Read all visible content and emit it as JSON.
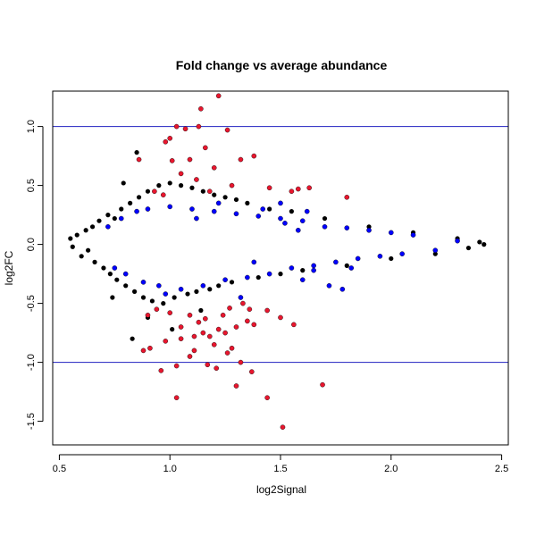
{
  "chart_data": {
    "type": "scatter",
    "title": "Fold change vs average abundance",
    "xlabel": "log2Signal",
    "ylabel": "log2FC",
    "xlim": [
      0.47,
      2.53
    ],
    "ylim": [
      -1.7,
      1.3
    ],
    "x_ticks": [
      0.5,
      1.0,
      1.5,
      2.0,
      2.5
    ],
    "x_tick_labels": [
      "0.5",
      "1.0",
      "1.5",
      "2.0",
      "2.5"
    ],
    "y_ticks": [
      -1.5,
      -1.0,
      -0.5,
      0.0,
      0.5,
      1.0
    ],
    "y_tick_labels": [
      "-1.5",
      "-1.0",
      "-0.5",
      "0.0",
      "0.5",
      "1.0"
    ],
    "hlines": [
      {
        "y": 1.0,
        "color": "#2020c0"
      },
      {
        "y": -1.0,
        "color": "#2020c0"
      }
    ],
    "grid": false,
    "legend": "none",
    "series": [
      {
        "color": "#000000",
        "points": [
          [
            0.55,
            0.05
          ],
          [
            0.56,
            -0.02
          ],
          [
            0.58,
            0.08
          ],
          [
            0.6,
            -0.1
          ],
          [
            0.62,
            0.12
          ],
          [
            0.63,
            -0.05
          ],
          [
            0.65,
            0.15
          ],
          [
            0.66,
            -0.15
          ],
          [
            0.68,
            0.2
          ],
          [
            0.7,
            -0.2
          ],
          [
            0.72,
            0.25
          ],
          [
            0.73,
            -0.25
          ],
          [
            0.75,
            0.22
          ],
          [
            0.76,
            -0.3
          ],
          [
            0.78,
            0.3
          ],
          [
            0.8,
            -0.35
          ],
          [
            0.82,
            0.35
          ],
          [
            0.84,
            -0.4
          ],
          [
            0.85,
            0.78
          ],
          [
            0.86,
            0.4
          ],
          [
            0.88,
            -0.45
          ],
          [
            0.9,
            0.45
          ],
          [
            0.92,
            -0.48
          ],
          [
            0.95,
            0.5
          ],
          [
            0.97,
            -0.5
          ],
          [
            1.0,
            0.52
          ],
          [
            1.02,
            -0.45
          ],
          [
            1.05,
            0.5
          ],
          [
            1.08,
            -0.42
          ],
          [
            1.1,
            0.48
          ],
          [
            1.12,
            -0.4
          ],
          [
            1.15,
            0.45
          ],
          [
            1.18,
            -0.38
          ],
          [
            1.2,
            0.42
          ],
          [
            1.22,
            -0.35
          ],
          [
            1.25,
            0.4
          ],
          [
            1.28,
            -0.32
          ],
          [
            1.3,
            0.38
          ],
          [
            1.35,
            0.35
          ],
          [
            1.4,
            -0.28
          ],
          [
            1.45,
            0.3
          ],
          [
            1.5,
            -0.25
          ],
          [
            1.55,
            0.28
          ],
          [
            1.6,
            -0.22
          ],
          [
            1.7,
            0.22
          ],
          [
            1.8,
            -0.18
          ],
          [
            1.9,
            0.15
          ],
          [
            2.0,
            -0.12
          ],
          [
            2.1,
            0.1
          ],
          [
            2.2,
            -0.08
          ],
          [
            2.3,
            0.05
          ],
          [
            2.35,
            -0.03
          ],
          [
            2.4,
            0.02
          ],
          [
            2.42,
            0.0
          ],
          [
            0.83,
            -0.8
          ],
          [
            0.9,
            -0.62
          ],
          [
            1.01,
            -0.72
          ],
          [
            0.79,
            0.52
          ],
          [
            0.74,
            -0.45
          ],
          [
            1.14,
            -0.56
          ]
        ]
      },
      {
        "color": "#0000ff",
        "points": [
          [
            0.72,
            0.15
          ],
          [
            0.75,
            -0.2
          ],
          [
            0.78,
            0.22
          ],
          [
            0.8,
            -0.25
          ],
          [
            0.85,
            0.28
          ],
          [
            0.88,
            -0.32
          ],
          [
            0.9,
            0.3
          ],
          [
            0.95,
            -0.35
          ],
          [
            1.0,
            0.32
          ],
          [
            1.05,
            -0.38
          ],
          [
            1.1,
            0.3
          ],
          [
            1.15,
            -0.35
          ],
          [
            1.2,
            0.28
          ],
          [
            1.25,
            -0.3
          ],
          [
            1.3,
            0.26
          ],
          [
            1.35,
            -0.28
          ],
          [
            1.4,
            0.24
          ],
          [
            1.45,
            -0.25
          ],
          [
            1.5,
            0.22
          ],
          [
            1.55,
            -0.2
          ],
          [
            1.6,
            0.2
          ],
          [
            1.65,
            -0.18
          ],
          [
            1.7,
            0.15
          ],
          [
            1.75,
            -0.15
          ],
          [
            1.8,
            0.14
          ],
          [
            1.85,
            -0.12
          ],
          [
            1.9,
            0.12
          ],
          [
            1.95,
            -0.1
          ],
          [
            2.0,
            0.1
          ],
          [
            2.05,
            -0.08
          ],
          [
            2.1,
            0.08
          ],
          [
            2.2,
            -0.05
          ],
          [
            2.3,
            0.03
          ],
          [
            1.6,
            -0.3
          ],
          [
            1.72,
            -0.35
          ],
          [
            1.78,
            -0.38
          ],
          [
            1.5,
            0.35
          ],
          [
            1.42,
            0.3
          ],
          [
            1.62,
            0.28
          ],
          [
            1.82,
            -0.2
          ],
          [
            1.12,
            0.22
          ],
          [
            0.98,
            -0.42
          ],
          [
            1.22,
            0.35
          ],
          [
            1.32,
            -0.45
          ],
          [
            1.65,
            -0.22
          ],
          [
            1.52,
            0.18
          ],
          [
            1.38,
            -0.15
          ],
          [
            1.58,
            0.12
          ]
        ]
      },
      {
        "color": "#e8162e",
        "points": [
          [
            1.22,
            1.26
          ],
          [
            1.14,
            1.15
          ],
          [
            1.03,
            1.0
          ],
          [
            1.13,
            1.0
          ],
          [
            1.07,
            0.98
          ],
          [
            1.26,
            0.97
          ],
          [
            1.0,
            0.9
          ],
          [
            0.98,
            0.87
          ],
          [
            1.16,
            0.82
          ],
          [
            1.09,
            0.72
          ],
          [
            0.86,
            0.72
          ],
          [
            1.01,
            0.71
          ],
          [
            1.32,
            0.72
          ],
          [
            1.38,
            0.75
          ],
          [
            1.2,
            0.65
          ],
          [
            1.05,
            0.6
          ],
          [
            1.12,
            0.55
          ],
          [
            1.28,
            0.5
          ],
          [
            1.45,
            0.48
          ],
          [
            1.55,
            0.45
          ],
          [
            1.63,
            0.48
          ],
          [
            1.8,
            0.4
          ],
          [
            1.58,
            0.47
          ],
          [
            0.93,
            0.45
          ],
          [
            0.97,
            0.42
          ],
          [
            1.18,
            0.45
          ],
          [
            1.51,
            -1.55
          ],
          [
            1.03,
            -1.3
          ],
          [
            1.44,
            -1.3
          ],
          [
            1.69,
            -1.19
          ],
          [
            1.3,
            -1.2
          ],
          [
            1.37,
            -1.08
          ],
          [
            1.32,
            -1.0
          ],
          [
            0.96,
            -1.07
          ],
          [
            1.03,
            -1.03
          ],
          [
            1.17,
            -1.02
          ],
          [
            1.09,
            -0.95
          ],
          [
            1.26,
            -0.92
          ],
          [
            1.21,
            -1.05
          ],
          [
            0.88,
            -0.9
          ],
          [
            0.91,
            -0.88
          ],
          [
            0.98,
            -0.82
          ],
          [
            1.05,
            -0.8
          ],
          [
            1.11,
            -0.78
          ],
          [
            1.15,
            -0.75
          ],
          [
            1.18,
            -0.78
          ],
          [
            1.22,
            -0.72
          ],
          [
            1.3,
            -0.7
          ],
          [
            1.35,
            -0.65
          ],
          [
            1.38,
            -0.68
          ],
          [
            1.44,
            -0.56
          ],
          [
            1.5,
            -0.62
          ],
          [
            1.56,
            -0.68
          ],
          [
            0.9,
            -0.6
          ],
          [
            0.94,
            -0.55
          ],
          [
            1.0,
            -0.58
          ],
          [
            1.09,
            -0.6
          ],
          [
            1.13,
            -0.66
          ],
          [
            1.16,
            -0.63
          ],
          [
            1.24,
            -0.6
          ],
          [
            1.27,
            -0.54
          ],
          [
            1.33,
            -0.5
          ],
          [
            1.36,
            -0.55
          ],
          [
            1.05,
            -0.7
          ],
          [
            1.2,
            -0.85
          ],
          [
            1.28,
            -0.88
          ],
          [
            1.11,
            -0.9
          ],
          [
            1.25,
            -0.75
          ]
        ]
      }
    ]
  }
}
